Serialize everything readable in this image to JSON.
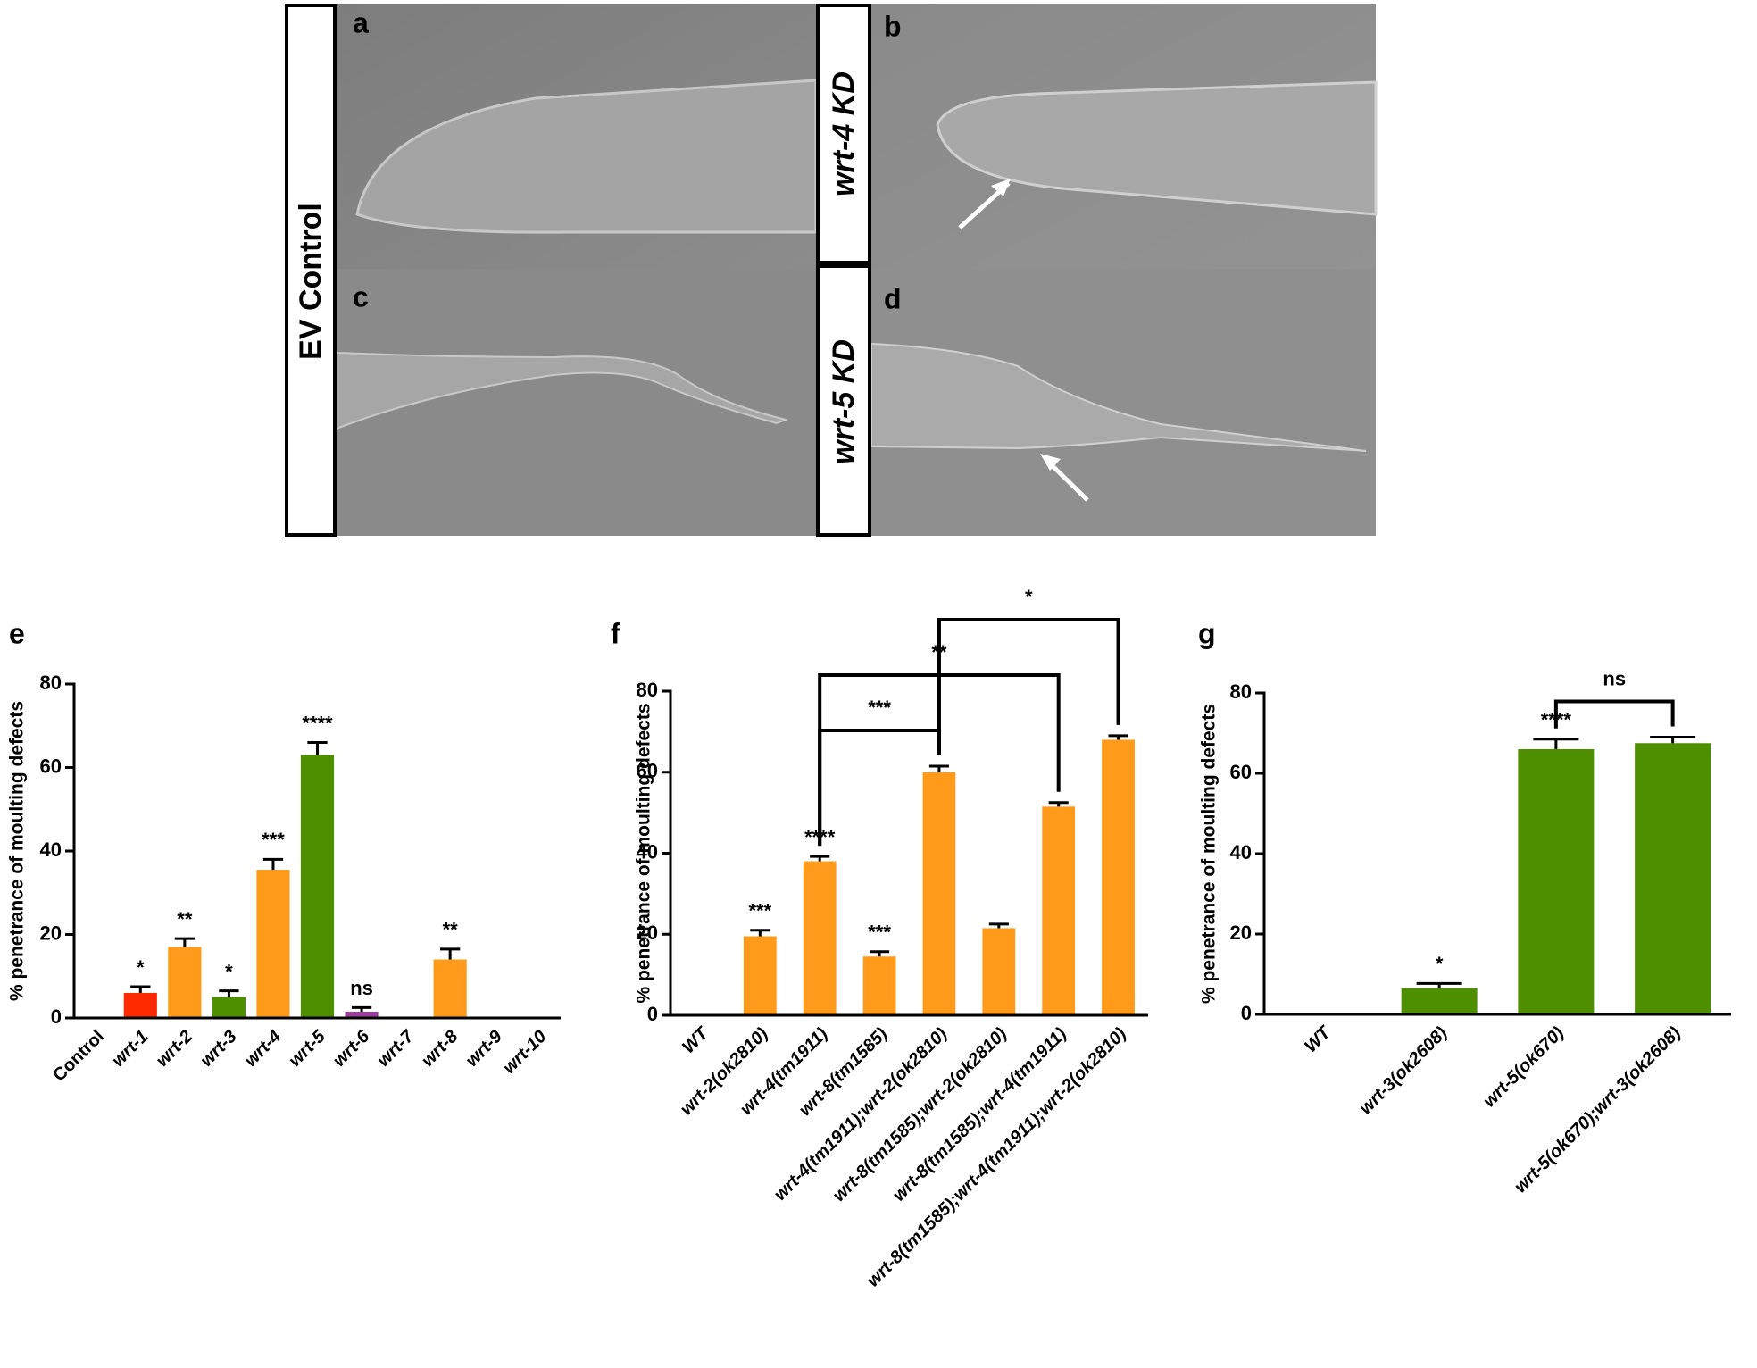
{
  "panels": [
    {
      "label": "a"
    },
    {
      "label": "b"
    },
    {
      "label": "c"
    },
    {
      "label": "d"
    }
  ],
  "row_labels": [
    "EV Control",
    "wrt-4 KD",
    "wrt-5 KD"
  ],
  "chart_data": [
    {
      "type": "bar",
      "panel": "e",
      "y_label": "% penetrance of moulting defects",
      "categories": [
        "Control",
        "wrt-1",
        "wrt-2",
        "wrt-3",
        "wrt-4",
        "wrt-5",
        "wrt-6",
        "wrt-7",
        "wrt-8",
        "wrt-9",
        "wrt-10"
      ],
      "values": [
        0,
        6,
        17,
        5,
        35.5,
        63,
        1.5,
        0,
        14,
        0,
        0
      ],
      "errors": [
        0,
        1.5,
        2,
        1.5,
        2.5,
        3,
        1,
        0,
        2.5,
        0,
        0
      ],
      "annotations": [
        null,
        "*",
        "**",
        "*",
        "***",
        "****",
        "ns",
        null,
        "**",
        null,
        null
      ],
      "colors": [
        "#ff9a1a",
        "#ff2a00",
        "#ff9a1a",
        "#4e8f00",
        "#ff9a1a",
        "#4e8f00",
        "#9b3d9b",
        "#ff9a1a",
        "#ff9a1a",
        "#ff9a1a",
        "#ff9a1a"
      ],
      "ylim": [
        0,
        80
      ],
      "yticks": [
        0,
        20,
        40,
        60,
        80
      ]
    },
    {
      "type": "bar",
      "panel": "f",
      "y_label": "% penetrance of moulting defects",
      "categories": [
        "WT",
        "wrt-2(ok2810)",
        "wrt-4(tm1911)",
        "wrt-8(tm1585)",
        "wrt-4(tm1911);wrt-2(ok2810)",
        "wrt-8(tm1585);wrt-2(ok2810)",
        "wrt-8(tm1585);wrt-4(tm1911)",
        "wrt-8(tm1585);wrt-4(tm1911);wrt-2(ok2810)"
      ],
      "values": [
        0,
        19.5,
        38,
        14.5,
        60,
        21.5,
        51.5,
        68
      ],
      "errors": [
        0,
        1.5,
        1.2,
        1.2,
        1.5,
        1,
        1,
        1
      ],
      "annotations": [
        null,
        "***",
        "****",
        "***",
        null,
        null,
        null,
        null
      ],
      "comparisons": [
        {
          "from": 2,
          "to": 4,
          "label": "***"
        },
        {
          "from": 2,
          "to": 6,
          "label": "**"
        },
        {
          "from": 4,
          "to": 7,
          "label": "*"
        }
      ],
      "color": "#ff9a1a",
      "ylim": [
        0,
        80
      ],
      "yticks": [
        0,
        20,
        40,
        60,
        80
      ]
    },
    {
      "type": "bar",
      "panel": "g",
      "y_label": "% penetrance of moulting defects",
      "categories": [
        "WT",
        "wrt-3(ok2608)",
        "wrt-5(ok670)",
        "wrt-5(ok670);wrt-3(ok2608)"
      ],
      "values": [
        0,
        6.5,
        66,
        67.5
      ],
      "errors": [
        0,
        1.2,
        2.5,
        1.5
      ],
      "annotations": [
        null,
        "*",
        "****",
        null
      ],
      "comparisons": [
        {
          "from": 2,
          "to": 3,
          "label": "ns"
        }
      ],
      "color": "#4e8f00",
      "ylim": [
        0,
        80
      ],
      "yticks": [
        0,
        20,
        40,
        60,
        80
      ]
    }
  ]
}
